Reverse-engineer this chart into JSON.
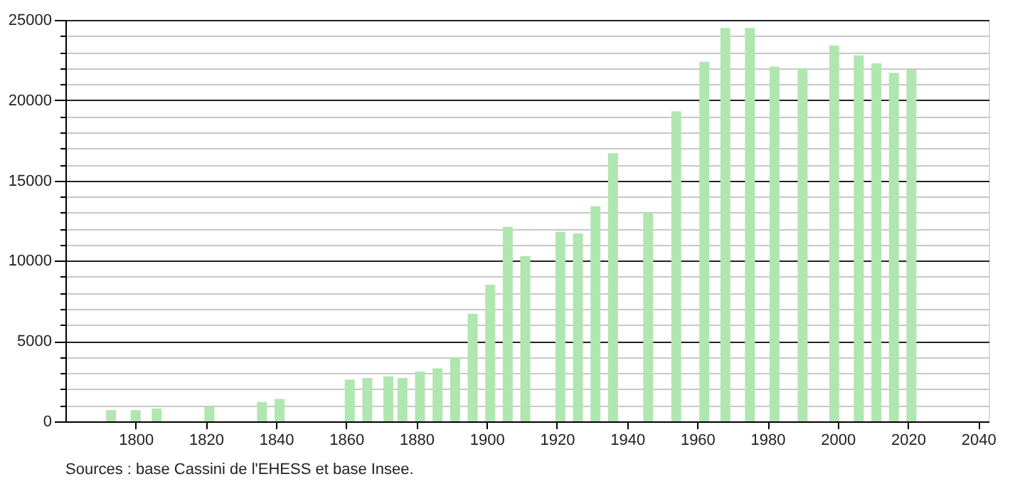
{
  "chart_data": {
    "type": "bar",
    "color": "#b0e6b0",
    "x": [
      1793,
      1800,
      1806,
      1821,
      1836,
      1841,
      1861,
      1866,
      1872,
      1876,
      1881,
      1886,
      1891,
      1896,
      1901,
      1906,
      1911,
      1921,
      1926,
      1931,
      1936,
      1946,
      1954,
      1962,
      1968,
      1975,
      1982,
      1990,
      1999,
      2006,
      2011,
      2016,
      2021
    ],
    "values": [
      700,
      700,
      800,
      900,
      1200,
      1400,
      2600,
      2700,
      2800,
      2700,
      3100,
      3300,
      4000,
      6700,
      8500,
      12100,
      10300,
      11800,
      11700,
      13400,
      16700,
      13000,
      19300,
      22400,
      24500,
      24500,
      22100,
      22000,
      23400,
      22800,
      22300,
      21700,
      21900
    ],
    "xlim": [
      1780,
      2043
    ],
    "xticks": [
      1800,
      1820,
      1840,
      1860,
      1880,
      1900,
      1920,
      1940,
      1960,
      1980,
      2000,
      2020,
      2040
    ],
    "ylim": [
      0,
      25000
    ],
    "yticks": [
      0,
      {
        "value": 1000,
        "label": null
      },
      {
        "value": 2000,
        "label": null
      },
      {
        "value": 3000,
        "label": null
      },
      {
        "value": 4000,
        "label": null
      },
      5000,
      {
        "value": 6000,
        "label": null
      },
      {
        "value": 7000,
        "label": null
      },
      {
        "value": 8000,
        "label": null
      },
      {
        "value": 9000,
        "label": null
      },
      10000,
      {
        "value": 11000,
        "label": null
      },
      {
        "value": 12000,
        "label": null
      },
      {
        "value": 13000,
        "label": null
      },
      {
        "value": 14000,
        "label": null
      },
      15000,
      {
        "value": 16000,
        "label": null
      },
      {
        "value": 17000,
        "label": null
      },
      {
        "value": 18000,
        "label": null
      },
      {
        "value": 19000,
        "label": null
      },
      20000,
      {
        "value": 21000,
        "label": null
      },
      {
        "value": 22000,
        "label": null
      },
      {
        "value": 23000,
        "label": null
      },
      {
        "value": 24000,
        "label": null
      },
      25000
    ],
    "grid": "y",
    "annotations": [
      "Sources : base Cassini de l'EHESS et base Insee."
    ]
  }
}
